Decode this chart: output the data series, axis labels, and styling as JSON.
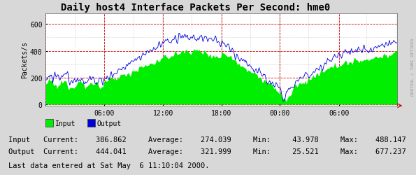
{
  "title": "Daily host4 Interface Packets Per Second: hme0",
  "ylabel": "Packets/s",
  "bg_color": "#d8d8d8",
  "plot_bg_color": "#ffffff",
  "grid_color_major": "#cc0000",
  "grid_color_minor": "#aaaaaa",
  "input_color": "#00ee00",
  "output_color": "#0000dd",
  "x_tick_labels": [
    "",
    "06:00",
    "12:00",
    "18:00",
    "00:00",
    "06:00",
    ""
  ],
  "y_ticks": [
    0,
    200,
    400,
    600
  ],
  "ylim": [
    -10,
    680
  ],
  "xlim": [
    0,
    500
  ],
  "legend_input": "Input",
  "legend_output": "Output",
  "stats_line1": "Input   Current:    386.862     Average:    274.039     Min:     43.978     Max:    488.147",
  "stats_line2": "Output  Current:    444.041     Average:    321.999     Min:     25.521     Max:    677.237",
  "footer_text": "Last data entered at Sat May  6 11:10:04 2000.",
  "watermark": "RRDTOOL / TOBI OETIKER",
  "title_fontsize": 10,
  "axis_fontsize": 7,
  "stats_fontsize": 7.5,
  "footer_fontsize": 7.5
}
